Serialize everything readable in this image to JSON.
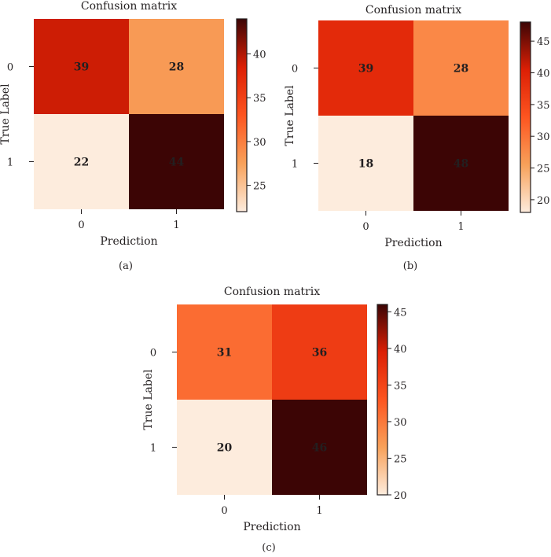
{
  "chart_data": [
    {
      "type": "heatmap",
      "panel_label": "(a)",
      "title": "Confusion matrix",
      "xlabel": "Prediction",
      "ylabel": "True Label",
      "x_tick_labels": [
        "0",
        "1"
      ],
      "y_tick_labels": [
        "0",
        "1"
      ],
      "values": [
        [
          39,
          28
        ],
        [
          22,
          44
        ]
      ],
      "colorbar": {
        "min": 22,
        "max": 44,
        "ticks": [
          25,
          30,
          35,
          40
        ]
      }
    },
    {
      "type": "heatmap",
      "panel_label": "(b)",
      "title": "Confusion matrix",
      "xlabel": "Prediction",
      "ylabel": "True Label",
      "x_tick_labels": [
        "0",
        "1"
      ],
      "y_tick_labels": [
        "0",
        "1"
      ],
      "values": [
        [
          39,
          28
        ],
        [
          18,
          48
        ]
      ],
      "colorbar": {
        "min": 18,
        "max": 48,
        "ticks": [
          20,
          25,
          30,
          35,
          40,
          45
        ]
      }
    },
    {
      "type": "heatmap",
      "panel_label": "(c)",
      "title": "Confusion matrix",
      "xlabel": "Prediction",
      "ylabel": "True Label",
      "x_tick_labels": [
        "0",
        "1"
      ],
      "y_tick_labels": [
        "0",
        "1"
      ],
      "values": [
        [
          31,
          36
        ],
        [
          20,
          46
        ]
      ],
      "colorbar": {
        "min": 20,
        "max": 46,
        "ticks": [
          20,
          25,
          30,
          35,
          40,
          45
        ]
      }
    }
  ],
  "colormap": {
    "name": "gist_heat_r",
    "stops": [
      "#fdecdd",
      "#f8a15a",
      "#fd5520",
      "#dc1f05",
      "#3c0505"
    ]
  }
}
